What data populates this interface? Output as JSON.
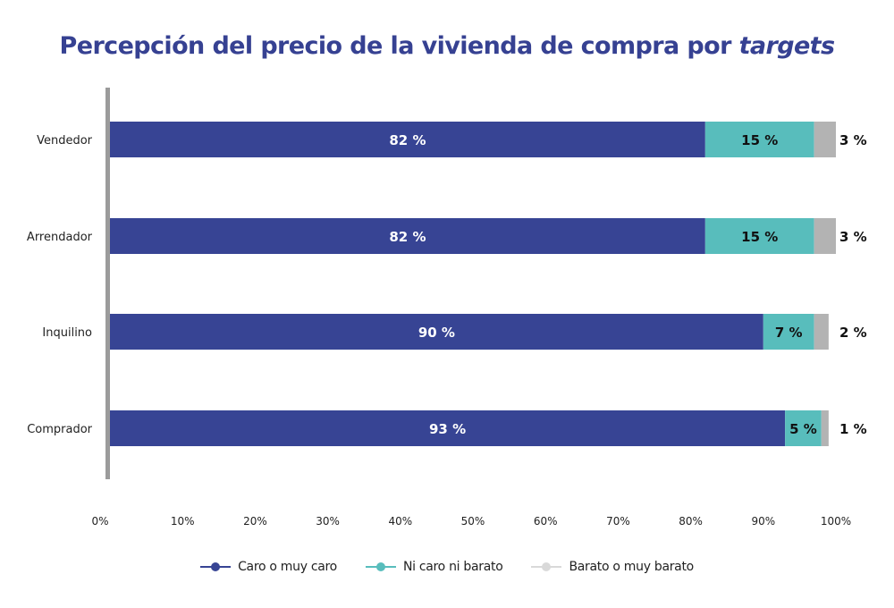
{
  "chart_data": {
    "type": "bar",
    "orientation": "horizontal",
    "stacked": true,
    "title": "Percepción del precio de la vivienda de compra por",
    "title_italic": "targets",
    "categories": [
      "Vendedor",
      "Arrendador",
      "Inquilino",
      "Comprador"
    ],
    "series": [
      {
        "name": "Caro o muy caro",
        "color": "#374494",
        "values": [
          82,
          82,
          90,
          93
        ],
        "labels": [
          "82 %",
          "82 %",
          "90 %",
          "93 %"
        ]
      },
      {
        "name": "Ni caro ni barato",
        "color": "#58BDBC",
        "values": [
          15,
          15,
          7,
          5
        ],
        "labels": [
          "15 %",
          "15 %",
          "7 %",
          "5 %"
        ]
      },
      {
        "name": "Barato o muy barato",
        "color": "#B3B3B3",
        "values": [
          3,
          3,
          2,
          1
        ],
        "labels": [
          "3 %",
          "3 %",
          "2 %",
          "1 %"
        ]
      }
    ],
    "xlim": [
      0,
      100
    ],
    "xticks": [
      "0%",
      "10%",
      "20%",
      "30%",
      "40%",
      "50%",
      "60%",
      "70%",
      "80%",
      "90%",
      "100%"
    ],
    "xlabel": "",
    "ylabel": "",
    "grid": false,
    "legend_position": "bottom"
  }
}
